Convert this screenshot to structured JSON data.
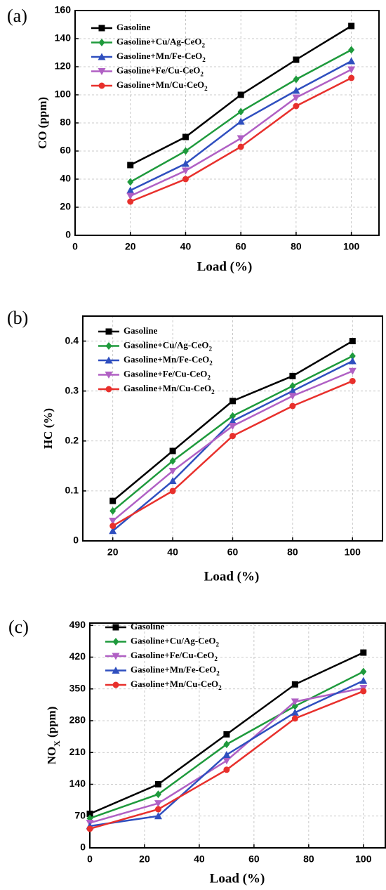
{
  "chart_data": [
    {
      "type": "line",
      "panel_label": "(a)",
      "xlabel": "Load (%)",
      "ylabel": "CO (ppm)",
      "x": [
        20,
        40,
        60,
        80,
        100
      ],
      "xlim": [
        0,
        110
      ],
      "xticks": [
        0,
        20,
        40,
        60,
        80,
        100
      ],
      "ylim": [
        0,
        160
      ],
      "yticks": [
        0,
        20,
        40,
        60,
        80,
        100,
        120,
        140,
        160
      ],
      "grid": true,
      "series": [
        {
          "name": "Gasoline",
          "color": "#000000",
          "marker": "square",
          "values": [
            50,
            70,
            100,
            125,
            149
          ]
        },
        {
          "name": "Gasoline+Cu/Ag-CeO2",
          "color": "#1e9a3c",
          "marker": "diamond",
          "values": [
            38,
            60,
            88,
            111,
            132
          ]
        },
        {
          "name": "Gasoline+Mn/Fe-CeO2",
          "color": "#2f4fbf",
          "marker": "triangle-up",
          "values": [
            32,
            51,
            81,
            103,
            124
          ]
        },
        {
          "name": "Gasoline+Fe/Cu-CeO2",
          "color": "#b060c4",
          "marker": "triangle-down",
          "values": [
            28,
            46,
            69,
            98,
            118
          ]
        },
        {
          "name": "Gasoline+Mn/Cu-CeO2",
          "color": "#e8302c",
          "marker": "circle",
          "values": [
            24,
            40,
            63,
            92,
            112
          ]
        }
      ]
    },
    {
      "type": "line",
      "panel_label": "(b)",
      "xlabel": "Load (%)",
      "ylabel": "HC (%)",
      "x": [
        20,
        40,
        60,
        80,
        100
      ],
      "xlim": [
        10,
        110
      ],
      "xticks": [
        20,
        40,
        60,
        80,
        100
      ],
      "ylim": [
        0,
        0.45
      ],
      "yticks": [
        0.0,
        0.1,
        0.2,
        0.3,
        0.4
      ],
      "grid": true,
      "series": [
        {
          "name": "Gasoline",
          "color": "#000000",
          "marker": "square",
          "values": [
            0.08,
            0.18,
            0.28,
            0.33,
            0.4
          ]
        },
        {
          "name": "Gasoline+Cu/Ag-CeO2",
          "color": "#1e9a3c",
          "marker": "diamond",
          "values": [
            0.06,
            0.16,
            0.25,
            0.31,
            0.37
          ]
        },
        {
          "name": "Gasoline+Mn/Fe-CeO2",
          "color": "#2f4fbf",
          "marker": "triangle-up",
          "values": [
            0.02,
            0.12,
            0.24,
            0.3,
            0.36
          ]
        },
        {
          "name": "Gasoline+Fe/Cu-CeO2",
          "color": "#b060c4",
          "marker": "triangle-down",
          "values": [
            0.04,
            0.14,
            0.23,
            0.29,
            0.34
          ]
        },
        {
          "name": "Gasoline+Mn/Cu-CeO2",
          "color": "#e8302c",
          "marker": "circle",
          "values": [
            0.03,
            0.1,
            0.21,
            0.27,
            0.32
          ]
        }
      ]
    },
    {
      "type": "line",
      "panel_label": "(c)",
      "xlabel": "Load (%)",
      "ylabel": "NOX (ppm)",
      "x": [
        0,
        25,
        50,
        75,
        100
      ],
      "xlim": [
        0,
        108
      ],
      "xticks": [
        0,
        20,
        40,
        60,
        80,
        100
      ],
      "ylim": [
        0,
        495
      ],
      "yticks": [
        0,
        70,
        140,
        210,
        280,
        350,
        420,
        490
      ],
      "grid": true,
      "series": [
        {
          "name": "Gasoline",
          "color": "#000000",
          "marker": "square",
          "values": [
            75,
            140,
            250,
            360,
            430
          ]
        },
        {
          "name": "Gasoline+Cu/Ag-CeO2",
          "color": "#1e9a3c",
          "marker": "diamond",
          "values": [
            65,
            118,
            228,
            312,
            388
          ]
        },
        {
          "name": "Gasoline+Fe/Cu-CeO2",
          "color": "#b060c4",
          "marker": "triangle-down",
          "values": [
            55,
            98,
            192,
            322,
            352
          ]
        },
        {
          "name": "Gasoline+Mn/Fe-CeO2",
          "color": "#2f4fbf",
          "marker": "triangle-up",
          "values": [
            48,
            70,
            205,
            298,
            368
          ]
        },
        {
          "name": "Gasoline+Mn/Cu-CeO2",
          "color": "#e8302c",
          "marker": "circle",
          "values": [
            42,
            85,
            172,
            285,
            345
          ]
        }
      ]
    }
  ]
}
